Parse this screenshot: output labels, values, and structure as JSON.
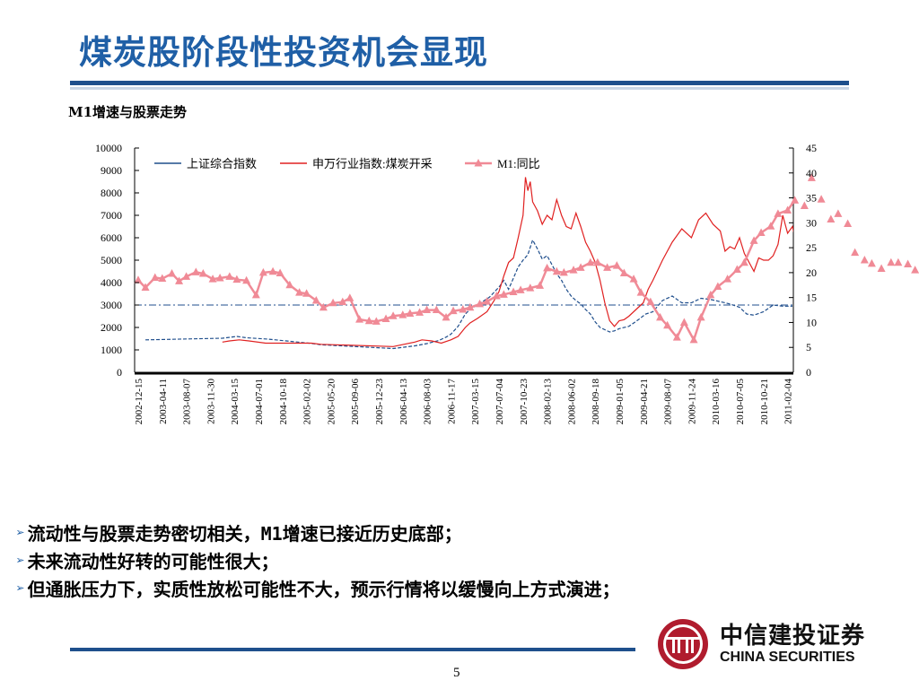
{
  "slide": {
    "title": "煤炭股阶段性投资机会显现",
    "page_number": "5"
  },
  "bullets": [
    "流动性与股票走势密切相关，M1增速已接近历史底部；",
    "未来流动性好转的可能性很大；",
    "但通胀压力下，实质性放松可能性不大，预示行情将以缓慢向上方式演进；"
  ],
  "bullet_marker": "➢",
  "logo": {
    "name_cn": "中信建投证券",
    "name_en": "CHINA SECURITIES",
    "color": "#b01c2e"
  },
  "chart_data": {
    "type": "line",
    "title": "M1增速与股票走势",
    "grid": false,
    "legend_position": "top-left",
    "x_tick_labels": [
      "2002-12-15",
      "2003-04-11",
      "2003-08-07",
      "2003-11-30",
      "2004-03-15",
      "2004-07-01",
      "2004-10-18",
      "2005-02-02",
      "2005-05-20",
      "2005-09-06",
      "2005-12-23",
      "2006-04-13",
      "2006-08-03",
      "2006-11-17",
      "2007-03-15",
      "2007-07-04",
      "2007-10-23",
      "2008-02-13",
      "2008-06-02",
      "2008-09-18",
      "2009-01-05",
      "2009-04-21",
      "2009-08-07",
      "2009-11-24",
      "2010-03-16",
      "2010-07-05",
      "2010-10-21",
      "2011-02-04"
    ],
    "y_left": {
      "ticks": [
        0,
        1000,
        2000,
        3000,
        4000,
        5000,
        6000,
        7000,
        8000,
        9000,
        10000
      ],
      "range": [
        0,
        10000
      ]
    },
    "y_right": {
      "ticks": [
        0,
        5,
        10,
        15,
        20,
        25,
        30,
        35,
        40,
        45
      ],
      "range": [
        0,
        45
      ]
    },
    "reference_line": {
      "value": 3000,
      "axis": "left",
      "style": "dash-dot",
      "color": "#1f4e8c"
    },
    "series": [
      {
        "name": "上证综合指数",
        "axis": "left",
        "color": "#1f4e8c",
        "style": "dashed-sparse",
        "points": [
          [
            0.3,
            1450
          ],
          [
            3.5,
            1520
          ],
          [
            4.1,
            1600
          ],
          [
            4.5,
            1540
          ],
          [
            5.4,
            1480
          ],
          [
            7.2,
            1290
          ],
          [
            7.6,
            1230
          ],
          [
            10.6,
            1060
          ],
          [
            11.5,
            1180
          ],
          [
            12.0,
            1280
          ],
          [
            12.5,
            1420
          ],
          [
            12.8,
            1570
          ],
          [
            13.0,
            1700
          ],
          [
            13.3,
            2050
          ],
          [
            13.6,
            2600
          ],
          [
            13.8,
            2800
          ],
          [
            14.1,
            3000
          ],
          [
            14.6,
            3350
          ],
          [
            15.0,
            3800
          ],
          [
            15.2,
            4100
          ],
          [
            15.4,
            3700
          ],
          [
            15.6,
            4200
          ],
          [
            15.8,
            4700
          ],
          [
            16.0,
            5000
          ],
          [
            16.2,
            5250
          ],
          [
            16.4,
            5900
          ],
          [
            16.6,
            5500
          ],
          [
            16.8,
            5050
          ],
          [
            17.0,
            5200
          ],
          [
            17.2,
            4800
          ],
          [
            17.4,
            4400
          ],
          [
            17.6,
            4100
          ],
          [
            17.8,
            3700
          ],
          [
            18.0,
            3400
          ],
          [
            18.2,
            3200
          ],
          [
            18.4,
            3050
          ],
          [
            18.6,
            2800
          ],
          [
            18.8,
            2600
          ],
          [
            19.0,
            2250
          ],
          [
            19.2,
            2000
          ],
          [
            19.4,
            1900
          ],
          [
            19.6,
            1800
          ],
          [
            19.8,
            1850
          ],
          [
            20.0,
            1950
          ],
          [
            20.4,
            2050
          ],
          [
            20.8,
            2350
          ],
          [
            21.1,
            2600
          ],
          [
            21.4,
            2700
          ],
          [
            21.8,
            3200
          ],
          [
            22.2,
            3400
          ],
          [
            22.6,
            3100
          ],
          [
            23.0,
            3100
          ],
          [
            23.4,
            3300
          ],
          [
            23.8,
            3250
          ],
          [
            24.2,
            3150
          ],
          [
            24.6,
            3050
          ],
          [
            25.0,
            2900
          ],
          [
            25.3,
            2600
          ],
          [
            25.6,
            2550
          ],
          [
            26.0,
            2700
          ],
          [
            26.4,
            3000
          ],
          [
            26.8,
            2950
          ],
          [
            27.2,
            2950
          ]
        ]
      },
      {
        "name": "申万行业指数:煤炭开采",
        "axis": "left",
        "color": "#e02020",
        "style": "solid",
        "points": [
          [
            3.5,
            1350
          ],
          [
            3.8,
            1400
          ],
          [
            4.2,
            1450
          ],
          [
            4.6,
            1400
          ],
          [
            5.3,
            1300
          ],
          [
            7.2,
            1300
          ],
          [
            7.6,
            1250
          ],
          [
            10.6,
            1150
          ],
          [
            11.5,
            1350
          ],
          [
            11.8,
            1450
          ],
          [
            12.2,
            1400
          ],
          [
            12.6,
            1300
          ],
          [
            13.0,
            1450
          ],
          [
            13.3,
            1600
          ],
          [
            13.6,
            2000
          ],
          [
            13.8,
            2200
          ],
          [
            14.1,
            2400
          ],
          [
            14.5,
            2700
          ],
          [
            14.8,
            3200
          ],
          [
            15.0,
            3600
          ],
          [
            15.2,
            4300
          ],
          [
            15.4,
            4900
          ],
          [
            15.6,
            5100
          ],
          [
            15.8,
            6000
          ],
          [
            16.0,
            7000
          ],
          [
            16.1,
            8700
          ],
          [
            16.2,
            8100
          ],
          [
            16.3,
            8500
          ],
          [
            16.4,
            7600
          ],
          [
            16.6,
            7200
          ],
          [
            16.8,
            6600
          ],
          [
            17.0,
            7000
          ],
          [
            17.2,
            6800
          ],
          [
            17.4,
            7700
          ],
          [
            17.6,
            7000
          ],
          [
            17.8,
            6500
          ],
          [
            18.0,
            6400
          ],
          [
            18.2,
            7100
          ],
          [
            18.4,
            6500
          ],
          [
            18.6,
            5800
          ],
          [
            18.8,
            5400
          ],
          [
            19.0,
            4900
          ],
          [
            19.2,
            4100
          ],
          [
            19.4,
            3100
          ],
          [
            19.6,
            2300
          ],
          [
            19.8,
            2050
          ],
          [
            20.0,
            2300
          ],
          [
            20.2,
            2350
          ],
          [
            20.4,
            2500
          ],
          [
            20.8,
            2900
          ],
          [
            21.0,
            3100
          ],
          [
            21.2,
            3700
          ],
          [
            21.4,
            4100
          ],
          [
            21.8,
            5000
          ],
          [
            22.2,
            5800
          ],
          [
            22.6,
            6400
          ],
          [
            23.0,
            6000
          ],
          [
            23.3,
            6800
          ],
          [
            23.6,
            7100
          ],
          [
            23.9,
            6600
          ],
          [
            24.2,
            6300
          ],
          [
            24.4,
            5400
          ],
          [
            24.6,
            5600
          ],
          [
            24.8,
            5500
          ],
          [
            25.0,
            6000
          ],
          [
            25.2,
            5300
          ],
          [
            25.4,
            4900
          ],
          [
            25.6,
            4500
          ],
          [
            25.8,
            5100
          ],
          [
            26.0,
            5000
          ],
          [
            26.2,
            5000
          ],
          [
            26.4,
            5200
          ],
          [
            26.6,
            5700
          ],
          [
            26.8,
            7000
          ],
          [
            27.0,
            6200
          ],
          [
            27.2,
            6500
          ],
          [
            27.4,
            5600
          ],
          [
            27.6,
            5700
          ],
          [
            27.8,
            6100
          ],
          [
            28.0,
            5900
          ]
        ]
      },
      {
        "name": "M1:同比",
        "axis": "right",
        "color": "#f08a96",
        "style": "line-with-triangles",
        "points": [
          [
            0.0,
            18.5
          ],
          [
            0.3,
            17.0
          ],
          [
            0.7,
            19.0
          ],
          [
            1.0,
            18.8
          ],
          [
            1.4,
            19.8
          ],
          [
            1.7,
            18.3
          ],
          [
            2.0,
            19.2
          ],
          [
            2.4,
            20.1
          ],
          [
            2.7,
            19.8
          ],
          [
            3.1,
            18.7
          ],
          [
            3.4,
            18.9
          ],
          [
            3.8,
            19.2
          ],
          [
            4.1,
            18.6
          ],
          [
            4.5,
            18.4
          ],
          [
            4.9,
            15.5
          ],
          [
            5.2,
            20.0
          ],
          [
            5.6,
            20.2
          ],
          [
            5.9,
            19.9
          ],
          [
            6.3,
            17.5
          ],
          [
            6.7,
            16.0
          ],
          [
            7.0,
            15.8
          ],
          [
            7.4,
            14.4
          ],
          [
            7.7,
            13.0
          ],
          [
            8.1,
            13.9
          ],
          [
            8.5,
            14.1
          ],
          [
            8.8,
            14.9
          ],
          [
            9.2,
            10.6
          ],
          [
            9.6,
            10.3
          ],
          [
            9.9,
            10.2
          ],
          [
            10.3,
            10.7
          ],
          [
            10.6,
            11.3
          ],
          [
            11.0,
            11.5
          ],
          [
            11.3,
            11.8
          ],
          [
            11.7,
            12.0
          ],
          [
            12.0,
            12.5
          ],
          [
            12.4,
            12.5
          ],
          [
            12.8,
            11.0
          ],
          [
            13.1,
            12.3
          ],
          [
            13.5,
            12.6
          ],
          [
            13.8,
            13.0
          ],
          [
            14.2,
            13.7
          ],
          [
            14.5,
            14.2
          ],
          [
            14.9,
            15.3
          ],
          [
            15.2,
            15.6
          ],
          [
            15.6,
            16.1
          ],
          [
            15.9,
            16.5
          ],
          [
            16.3,
            16.9
          ],
          [
            16.7,
            17.4
          ],
          [
            17.0,
            20.9
          ],
          [
            17.4,
            20.2
          ],
          [
            17.7,
            20.0
          ],
          [
            18.1,
            20.5
          ],
          [
            18.4,
            21.0
          ],
          [
            18.8,
            22.0
          ],
          [
            19.1,
            22.0
          ],
          [
            19.5,
            21.0
          ],
          [
            19.9,
            21.4
          ],
          [
            20.2,
            19.9
          ],
          [
            20.6,
            18.7
          ],
          [
            20.9,
            16.0
          ],
          [
            21.3,
            14.1
          ],
          [
            21.7,
            11.0
          ],
          [
            22.0,
            9.4
          ],
          [
            22.4,
            7.0
          ],
          [
            22.7,
            10.0
          ],
          [
            23.1,
            6.5
          ],
          [
            23.4,
            11.0
          ],
          [
            23.8,
            15.5
          ],
          [
            24.1,
            17.2
          ],
          [
            24.5,
            18.7
          ],
          [
            24.9,
            20.6
          ],
          [
            25.2,
            22.0
          ],
          [
            25.6,
            26.4
          ],
          [
            25.9,
            28.0
          ],
          [
            26.3,
            29.3
          ],
          [
            26.6,
            31.8
          ],
          [
            27.0,
            32.5
          ],
          [
            27.3,
            34.5
          ],
          [
            27.7,
            33.4
          ],
          [
            28.0,
            39.0
          ],
          [
            28.4,
            34.7
          ],
          [
            28.8,
            30.7
          ],
          [
            29.1,
            31.8
          ],
          [
            29.5,
            29.8
          ],
          [
            29.8,
            24.0
          ],
          [
            30.2,
            22.5
          ],
          [
            30.5,
            21.8
          ],
          [
            30.9,
            20.8
          ],
          [
            31.3,
            22.0
          ],
          [
            31.6,
            22.0
          ],
          [
            32.0,
            21.7
          ],
          [
            32.3,
            20.5
          ],
          [
            32.7,
            15.0
          ]
        ]
      }
    ]
  }
}
